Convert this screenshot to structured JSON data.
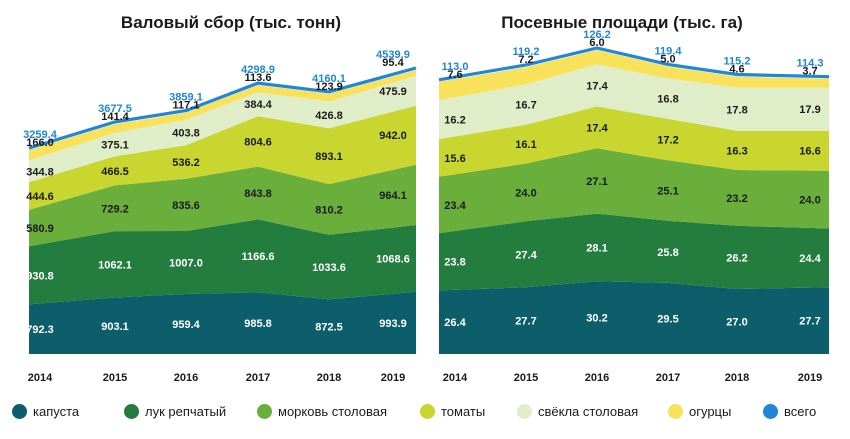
{
  "colors": {
    "cabbage": "#0c5e6b",
    "onion": "#237d3e",
    "carrot": "#6aae3c",
    "tomato": "#c9d630",
    "beet": "#dfeec8",
    "cucumber": "#f8e25b",
    "total": "#1f86d8",
    "label_dark": "#ffffff",
    "label_light": "#1a1a1a",
    "total_label": "#1f86d8"
  },
  "legend": [
    {
      "key": "cabbage",
      "label": "капуста"
    },
    {
      "key": "onion",
      "label": "лук репчатый"
    },
    {
      "key": "carrot",
      "label": "морковь столовая"
    },
    {
      "key": "tomato",
      "label": "томаты"
    },
    {
      "key": "beet",
      "label": "свёкла столовая"
    },
    {
      "key": "cucumber",
      "label": "огурцы"
    },
    {
      "key": "total",
      "label": "всего"
    }
  ],
  "chart_data": [
    {
      "type": "area",
      "title": "Валовый сбор (тыс. тонн)",
      "stacked": true,
      "x": [
        "2014",
        "2015",
        "2016",
        "2017",
        "2018",
        "2019"
      ],
      "series": [
        {
          "key": "cabbage",
          "name": "капуста",
          "values": [
            792.3,
            903.1,
            959.4,
            985.8,
            872.5,
            993.9
          ],
          "labels": [
            "792.3",
            "903.1",
            "959.4",
            "985.8",
            "872.5",
            "993.9"
          ]
        },
        {
          "key": "onion",
          "name": "лук репчатый",
          "values": [
            930.8,
            1062.1,
            1007.0,
            1166.6,
            1033.6,
            1068.6
          ],
          "labels": [
            "930.8",
            "1062.1",
            "1007.0",
            "1166.6",
            "1033.6",
            "1068.6"
          ]
        },
        {
          "key": "carrot",
          "name": "морковь столовая",
          "values": [
            580.9,
            729.2,
            835.6,
            843.8,
            810.2,
            964.1
          ],
          "labels": [
            "580.9",
            "729.2",
            "835.6",
            "843.8",
            "810.2",
            "964.1"
          ]
        },
        {
          "key": "tomato",
          "name": "томаты",
          "values": [
            444.6,
            466.5,
            536.2,
            804.6,
            893.1,
            942.0
          ],
          "labels": [
            "444.6",
            "466.5",
            "536.2",
            "804.6",
            "893.1",
            "942.0"
          ]
        },
        {
          "key": "beet",
          "name": "свёкла столовая",
          "values": [
            344.8,
            375.1,
            403.8,
            384.4,
            426.8,
            475.9
          ],
          "labels": [
            "344.8",
            "375.1",
            "403.8",
            "384.4",
            "426.8",
            "475.9"
          ]
        },
        {
          "key": "cucumber",
          "name": "огурцы",
          "values": [
            166.0,
            141.4,
            117.1,
            113.6,
            123.9,
            95.4
          ],
          "labels": [
            "166.0",
            "141.4",
            "117.1",
            "113.6",
            "123.9",
            "95.4"
          ]
        }
      ],
      "total": {
        "key": "total",
        "name": "всего",
        "values": [
          3259.4,
          3677.5,
          3859.1,
          4298.9,
          4160.1,
          4539.9
        ],
        "labels": [
          "3259.4",
          "3677.5",
          "3859.1",
          "4298.9",
          "4160.1",
          "4539.9"
        ]
      }
    },
    {
      "type": "area",
      "title": "Посевные площади (тыс. га)",
      "stacked": true,
      "x": [
        "2014",
        "2015",
        "2016",
        "2017",
        "2018",
        "2019"
      ],
      "series": [
        {
          "key": "cabbage",
          "name": "капуста",
          "values": [
            26.4,
            27.7,
            30.2,
            29.5,
            27.0,
            27.7
          ],
          "labels": [
            "26.4",
            "27.7",
            "30.2",
            "29.5",
            "27.0",
            "27.7"
          ]
        },
        {
          "key": "onion",
          "name": "лук репчатый",
          "values": [
            23.8,
            27.4,
            28.1,
            25.8,
            26.2,
            24.4
          ],
          "labels": [
            "23.8",
            "27.4",
            "28.1",
            "25.8",
            "26.2",
            "24.4"
          ]
        },
        {
          "key": "carrot",
          "name": "морковь столовая",
          "values": [
            23.4,
            24.0,
            27.1,
            25.1,
            23.2,
            24.0
          ],
          "labels": [
            "23.4",
            "24.0",
            "27.1",
            "25.1",
            "23.2",
            "24.0"
          ]
        },
        {
          "key": "tomato",
          "name": "томаты",
          "values": [
            15.6,
            16.1,
            17.4,
            17.2,
            16.3,
            16.6
          ],
          "labels": [
            "15.6",
            "16.1",
            "17.4",
            "17.2",
            "16.3",
            "16.6"
          ]
        },
        {
          "key": "beet",
          "name": "свёкла столовая",
          "values": [
            16.2,
            16.7,
            17.4,
            16.8,
            17.8,
            17.9
          ],
          "labels": [
            "16.2",
            "16.7",
            "17.4",
            "16.8",
            "17.8",
            "17.9"
          ]
        },
        {
          "key": "cucumber",
          "name": "огурцы",
          "values": [
            7.6,
            7.2,
            6.0,
            5.0,
            4.6,
            3.7
          ],
          "labels": [
            "7.6",
            "7.2",
            "6.0",
            "5.0",
            "4.6",
            "3.7"
          ]
        }
      ],
      "total": {
        "key": "total",
        "name": "всего",
        "values": [
          113.0,
          119.2,
          126.2,
          119.4,
          115.2,
          114.3
        ],
        "labels": [
          "113.0",
          "119.2",
          "126.2",
          "119.4",
          "115.2",
          "114.3"
        ]
      }
    }
  ]
}
